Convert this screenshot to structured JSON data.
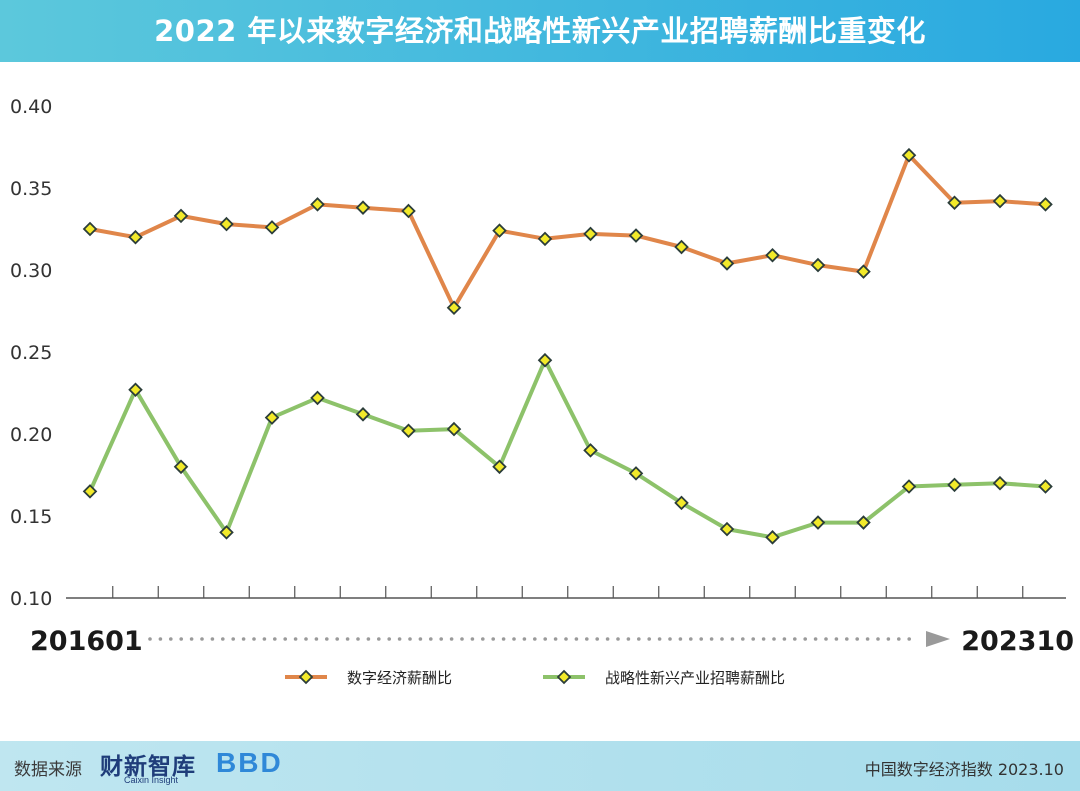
{
  "header": {
    "title": "2022 年以来数字经济和战略性新兴产业招聘薪酬比重变化"
  },
  "chart_data": {
    "type": "line",
    "title": "2022 年以来数字经济和战略性新兴产业招聘薪酬比重变化",
    "x_start_label": "201601",
    "x_end_label": "202310",
    "ylim": [
      0.1,
      0.4
    ],
    "y_ticks": [
      "0.40",
      "0.35",
      "0.30",
      "0.25",
      "0.20",
      "0.15",
      "0.10"
    ],
    "grid": false,
    "legend_position": "bottom-center",
    "series": [
      {
        "name": "数字经济薪酬比",
        "color": "#e0864a",
        "values": [
          0.325,
          0.32,
          0.333,
          0.328,
          0.326,
          0.34,
          0.338,
          0.336,
          0.277,
          0.324,
          0.319,
          0.322,
          0.321,
          0.314,
          0.304,
          0.309,
          0.303,
          0.299,
          0.37,
          0.341,
          0.342,
          0.34
        ]
      },
      {
        "name": "战略性新兴产业招聘薪酬比",
        "color": "#8dc26a",
        "values": [
          0.165,
          0.227,
          0.18,
          0.14,
          0.21,
          0.222,
          0.212,
          0.202,
          0.203,
          0.18,
          0.245,
          0.19,
          0.176,
          0.158,
          0.142,
          0.137,
          0.146,
          0.146,
          0.168,
          0.169,
          0.17,
          0.168
        ]
      }
    ]
  },
  "footer": {
    "source_label": "数据来源",
    "logo1_text": "财新智库",
    "logo1_sub": "Caixin Insight",
    "logo2_text": "BBD",
    "publication": "中国数字经济指数 2023.10"
  }
}
